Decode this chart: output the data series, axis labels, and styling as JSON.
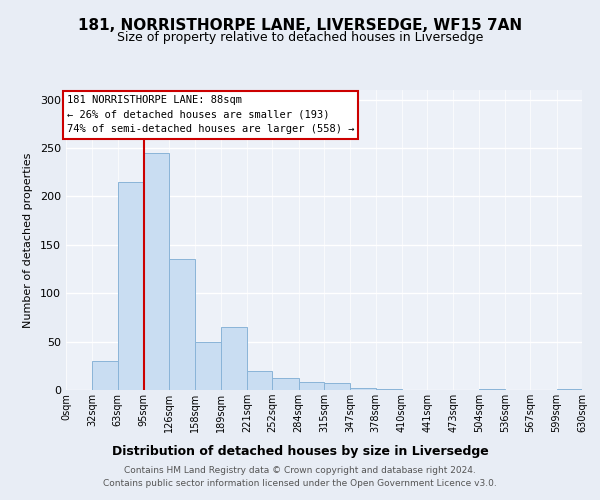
{
  "title_line1": "181, NORRISTHORPE LANE, LIVERSEDGE, WF15 7AN",
  "title_line2": "Size of property relative to detached houses in Liversedge",
  "xlabel": "Distribution of detached houses by size in Liversedge",
  "ylabel": "Number of detached properties",
  "bar_color": "#c9ddf2",
  "bar_edge_color": "#8ab4d8",
  "background_color": "#e8edf5",
  "plot_bg_color": "#edf1f8",
  "footer_line1": "Contains HM Land Registry data © Crown copyright and database right 2024.",
  "footer_line2": "Contains public sector information licensed under the Open Government Licence v3.0.",
  "annotation_line1": "181 NORRISTHORPE LANE: 88sqm",
  "annotation_line2": "← 26% of detached houses are smaller (193)",
  "annotation_line3": "74% of semi-detached houses are larger (558) →",
  "bin_edges": [
    0,
    32,
    63,
    95,
    126,
    158,
    189,
    221,
    252,
    284,
    315,
    347,
    378,
    410,
    441,
    473,
    504,
    536,
    567,
    599,
    630
  ],
  "bin_labels": [
    "0sqm",
    "32sqm",
    "63sqm",
    "95sqm",
    "126sqm",
    "158sqm",
    "189sqm",
    "221sqm",
    "252sqm",
    "284sqm",
    "315sqm",
    "347sqm",
    "378sqm",
    "410sqm",
    "441sqm",
    "473sqm",
    "504sqm",
    "536sqm",
    "567sqm",
    "599sqm",
    "630sqm"
  ],
  "bar_heights": [
    0,
    30,
    215,
    245,
    135,
    50,
    65,
    20,
    12,
    8,
    7,
    2,
    1,
    0,
    0,
    0,
    1,
    0,
    0,
    1
  ],
  "ylim": [
    0,
    310
  ],
  "yticks": [
    0,
    50,
    100,
    150,
    200,
    250,
    300
  ],
  "vline_x": 95,
  "vline_color": "#cc0000",
  "annotation_box_color": "white",
  "annotation_box_edge": "#cc0000"
}
